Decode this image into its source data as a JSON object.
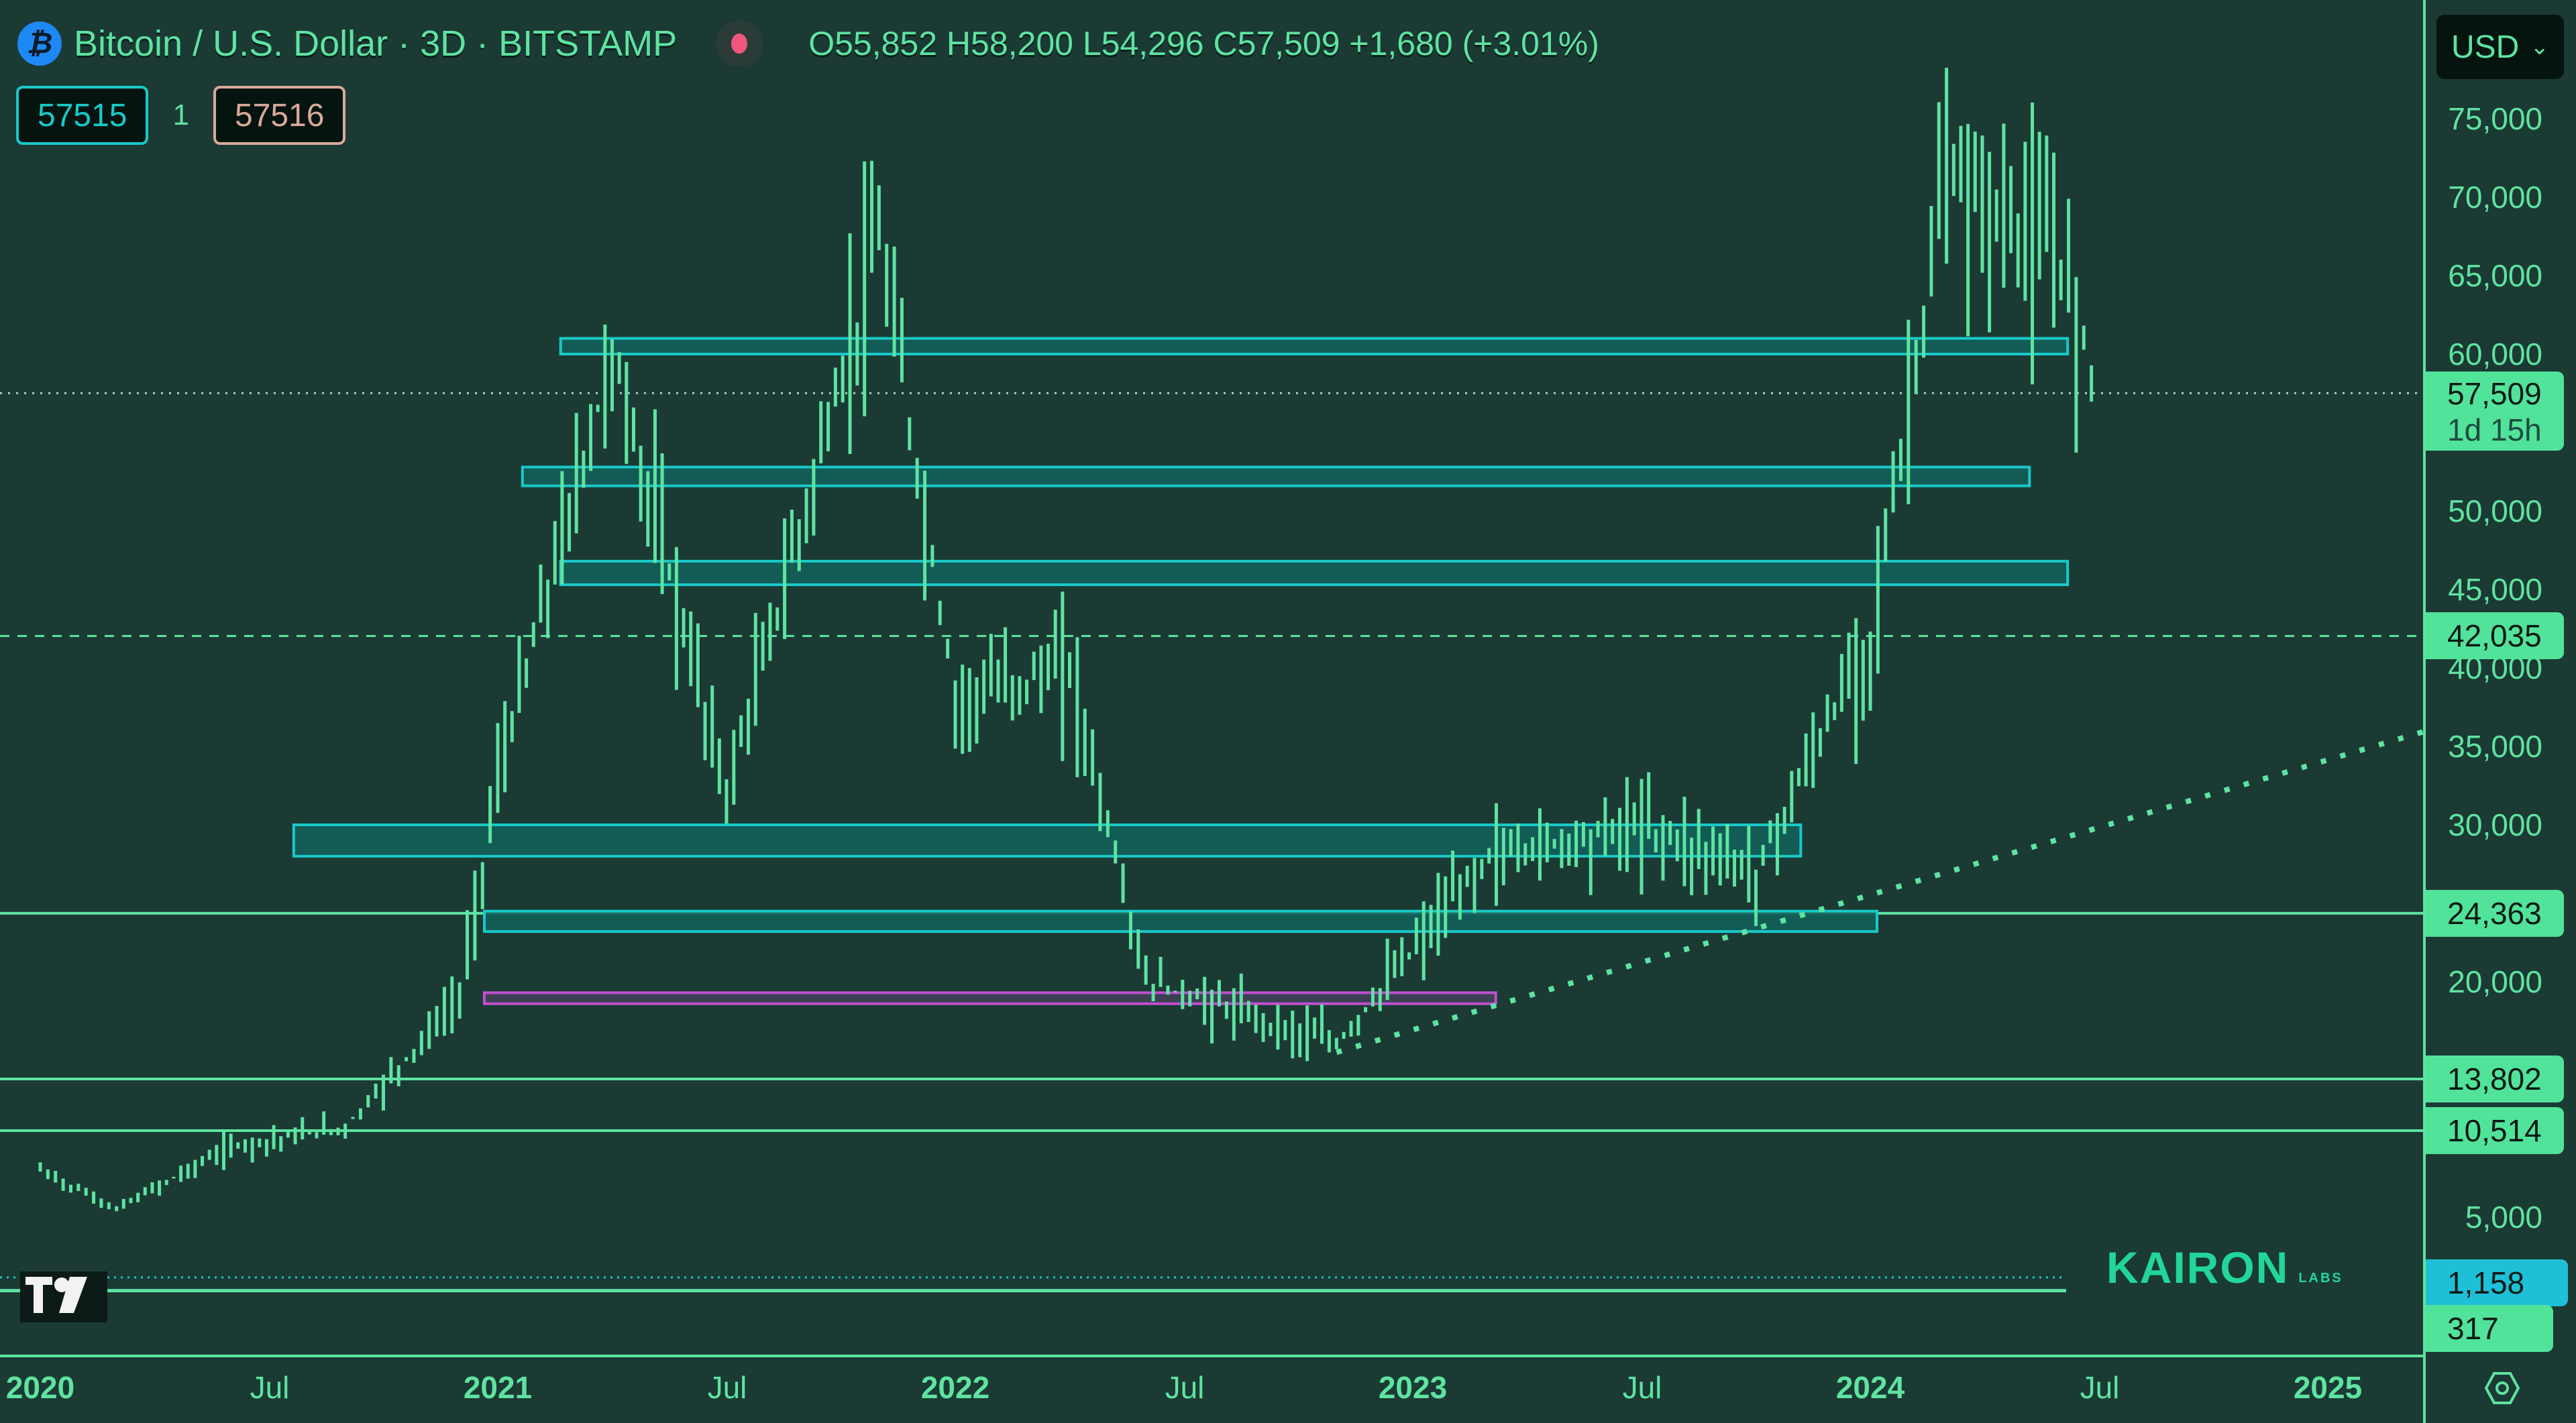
{
  "header": {
    "symbol_title": "Bitcoin / U.S. Dollar · 3D · BITSTAMP",
    "symbol_icon": "bitcoin-icon",
    "ohlc": "O55,852 H58,200 L54,296 C57,509 +1,680 (+3.01%)",
    "open": "55,852",
    "high": "58,200",
    "low": "54,296",
    "close": "57,509",
    "change": "+1,680",
    "change_pct": "+3.01%",
    "market_status_color": "#f0577e"
  },
  "order_badges": {
    "bid": "57515",
    "spread": "1",
    "ask": "57516"
  },
  "currency_select": {
    "value": "USD"
  },
  "price_axis": {
    "ticks": [
      "75,000",
      "70,000",
      "65,000",
      "60,000",
      "50,000",
      "45,000",
      "40,000",
      "35,000",
      "30,000",
      "20,000",
      "5,000"
    ],
    "labels": [
      {
        "value": "57,509",
        "sub": "1d 15h",
        "kind": "last-price"
      },
      {
        "value": "42,035",
        "kind": "horizontal-line"
      },
      {
        "value": "24,363",
        "kind": "horizontal-line"
      },
      {
        "value": "13,802",
        "kind": "horizontal-line"
      },
      {
        "value": "10,514",
        "kind": "horizontal-line"
      },
      {
        "value": "1,158",
        "kind": "dotted-line"
      },
      {
        "value": "317",
        "kind": "horizontal-line"
      }
    ]
  },
  "time_axis": {
    "ticks": [
      "2020",
      "Jul",
      "2021",
      "Jul",
      "2022",
      "Jul",
      "2023",
      "Jul",
      "2024",
      "Jul",
      "2025"
    ]
  },
  "watermark": {
    "brand": "KAIRON",
    "sub": "LABS"
  },
  "colors": {
    "background": "#1b3a34",
    "bars": "#5ee3a1",
    "zone_border": "#19c9c9",
    "zone_fill": "#13615a",
    "purple_zone_border": "#c04fd0",
    "purple_zone_fill": "#3f4258",
    "label_green": "#52e39b",
    "label_blue": "#1fbfd8"
  },
  "chart_data": {
    "type": "ohlc-bar",
    "title": "Bitcoin / U.S. Dollar · 3D · BITSTAMP",
    "xlabel": "",
    "ylabel": "USD",
    "x_range": [
      "2020-01",
      "2025-03"
    ],
    "ylim": [
      0,
      78000
    ],
    "grid": false,
    "approx_close_path": [
      {
        "t": "2020-01",
        "p": 8000
      },
      {
        "t": "2020-03",
        "p": 5500
      },
      {
        "t": "2020-06",
        "p": 9500
      },
      {
        "t": "2020-09",
        "p": 10700
      },
      {
        "t": "2020-12",
        "p": 19000
      },
      {
        "t": "2021-01",
        "p": 33000
      },
      {
        "t": "2021-04",
        "p": 60000
      },
      {
        "t": "2021-07",
        "p": 32000
      },
      {
        "t": "2021-11",
        "p": 67000
      },
      {
        "t": "2022-01",
        "p": 38000
      },
      {
        "t": "2022-04",
        "p": 40000
      },
      {
        "t": "2022-06",
        "p": 20000
      },
      {
        "t": "2022-11",
        "p": 16000
      },
      {
        "t": "2023-03",
        "p": 28000
      },
      {
        "t": "2023-07",
        "p": 30000
      },
      {
        "t": "2023-10",
        "p": 27000
      },
      {
        "t": "2024-01",
        "p": 42000
      },
      {
        "t": "2024-03",
        "p": 71000
      },
      {
        "t": "2024-06",
        "p": 66000
      },
      {
        "t": "2024-07",
        "p": 57509
      }
    ],
    "last_price": 57509,
    "zones": [
      {
        "color": "teal",
        "from": 60000,
        "to": 61000,
        "x_start": "2021-03",
        "x_end": "2024-06"
      },
      {
        "color": "teal",
        "from": 51600,
        "to": 52800,
        "x_start": "2021-02",
        "x_end": "2024-05"
      },
      {
        "color": "teal",
        "from": 45300,
        "to": 46800,
        "x_start": "2021-03",
        "x_end": "2024-06"
      },
      {
        "color": "teal",
        "from": 28000,
        "to": 30000,
        "x_start": "2020-08",
        "x_end": "2023-11"
      },
      {
        "color": "teal",
        "from": 23200,
        "to": 24500,
        "x_start": "2021-01",
        "x_end": "2024-01"
      },
      {
        "color": "purple",
        "from": 18600,
        "to": 19300,
        "x_start": "2021-01",
        "x_end": "2023-03"
      }
    ],
    "horizontal_lines": [
      42035,
      24363,
      13802,
      10514,
      1158,
      317
    ],
    "trendline": {
      "style": "dotted",
      "from": {
        "t": "2022-11",
        "p": 15500
      },
      "to": {
        "t": "2025-05",
        "p": 35500
      }
    }
  }
}
